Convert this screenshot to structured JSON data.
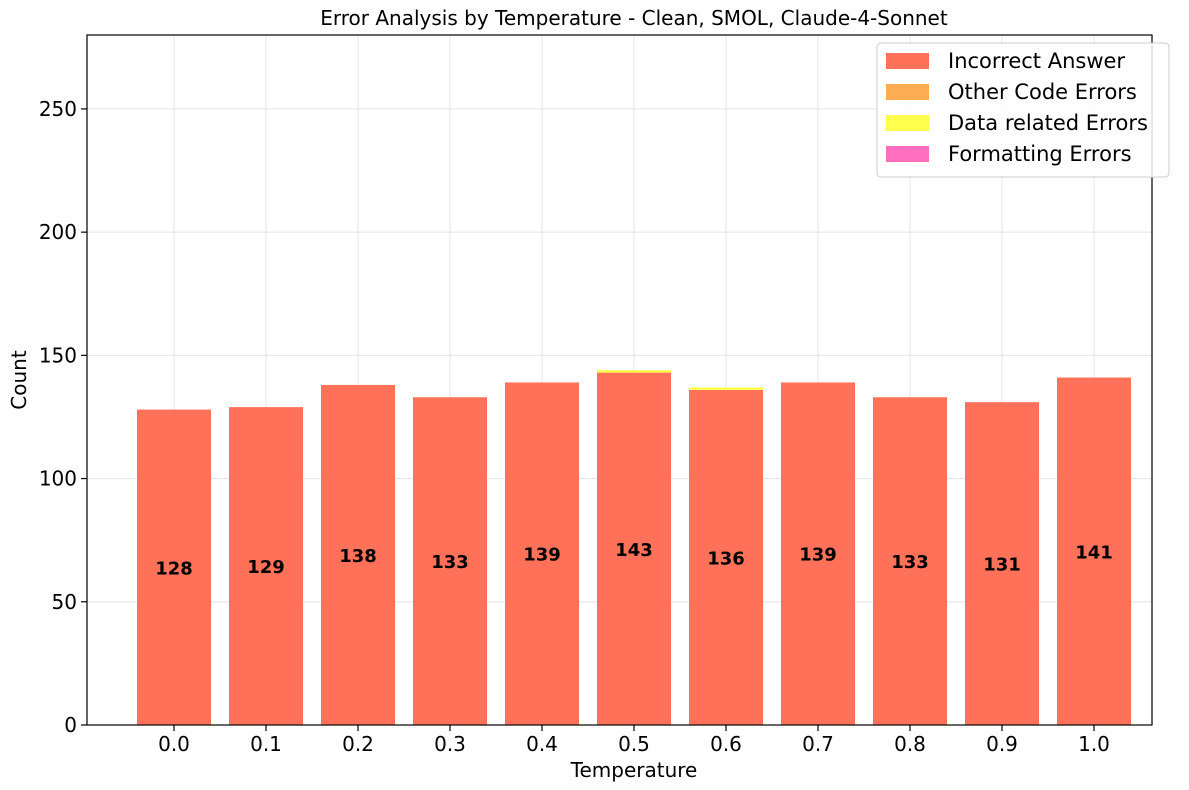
{
  "chart_data": {
    "type": "bar",
    "stacked": true,
    "title": "Error Analysis by Temperature - Clean, SMOL, Claude-4-Sonnet",
    "xlabel": "Temperature",
    "ylabel": "Count",
    "ylim": [
      0,
      280
    ],
    "yticks": [
      "0",
      "50",
      "100",
      "150",
      "200",
      "250"
    ],
    "categories": [
      "0.0",
      "0.1",
      "0.2",
      "0.3",
      "0.4",
      "0.5",
      "0.6",
      "0.7",
      "0.8",
      "0.9",
      "1.0"
    ],
    "grid": true,
    "legend_position": "top-right",
    "series": [
      {
        "name": "Incorrect Answer",
        "color": "#ff7259",
        "values": [
          128,
          129,
          138,
          133,
          139,
          143,
          136,
          139,
          133,
          131,
          141
        ]
      },
      {
        "name": "Other Code Errors",
        "color": "#ffad55",
        "values": [
          0,
          0,
          0,
          0,
          0,
          0,
          0,
          0,
          0,
          0,
          0
        ]
      },
      {
        "name": "Data related Errors",
        "color": "#ffff4d",
        "values": [
          0,
          0,
          0,
          0,
          0,
          1,
          1,
          0,
          0,
          0,
          0
        ]
      },
      {
        "name": "Formatting Errors",
        "color": "#ff6ebf",
        "values": [
          0,
          0,
          0,
          0,
          0,
          0,
          0,
          0,
          0,
          0,
          0
        ]
      }
    ],
    "bar_labels": [
      "128",
      "129",
      "138",
      "133",
      "139",
      "143",
      "136",
      "139",
      "133",
      "131",
      "141"
    ]
  }
}
